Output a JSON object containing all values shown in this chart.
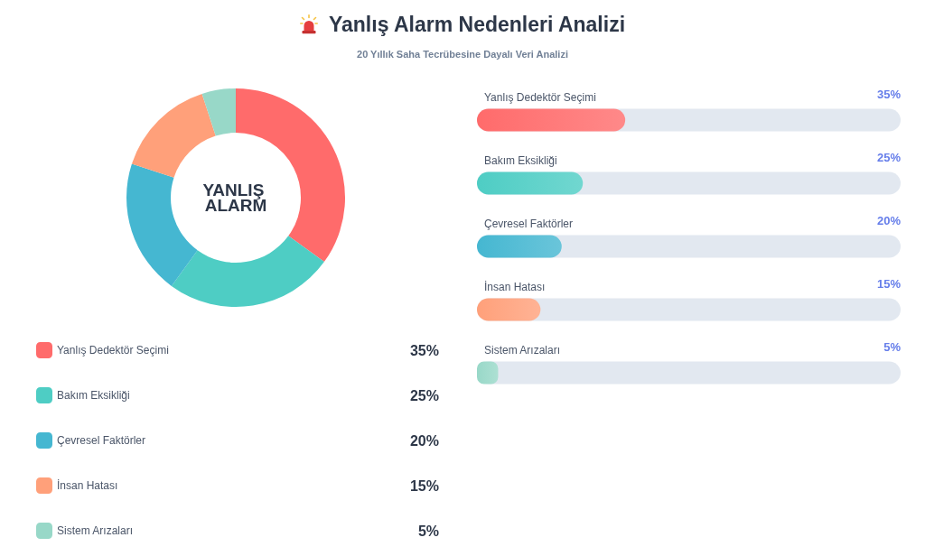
{
  "chart_data": [
    {
      "type": "donut",
      "title": "Yanlış Alarm Nedenleri Analizi",
      "subtitle": "20 Yıllık Saha Tecrübesine Dayalı Veri Analizi",
      "categories": [
        "Yanlış Dedektör Seçimi",
        "Bakım Eksikliği",
        "Çevresel Faktörler",
        "İnsan Hatası",
        "Sistem Arızaları"
      ],
      "values": [
        35,
        25,
        20,
        15,
        5
      ],
      "colors": [
        "#ff6b6b",
        "#4ecdc4",
        "#45b7d1",
        "#ffa07a",
        "#98d8c8"
      ],
      "value_labels": [
        "35%",
        "25%",
        "20%",
        "15%",
        "5%"
      ],
      "annotations": [
        "YANLIŞ ALARM"
      ],
      "legend": "bottom"
    },
    {
      "type": "bar",
      "orientation": "horizontal",
      "categories": [
        "Yanlış Dedektör Seçimi",
        "Bakım Eksikliği",
        "Çevresel Faktörler",
        "İnsan Hatası",
        "Sistem Arızaları"
      ],
      "values": [
        35,
        25,
        20,
        15,
        5
      ],
      "colors": [
        "#ff6b6b",
        "#4ecdc4",
        "#45b7d1",
        "#ffa07a",
        "#98d8c8"
      ],
      "value_labels": [
        "35%",
        "25%",
        "20%",
        "15%",
        "5%"
      ],
      "xlim": [
        0,
        100
      ]
    }
  ]
}
